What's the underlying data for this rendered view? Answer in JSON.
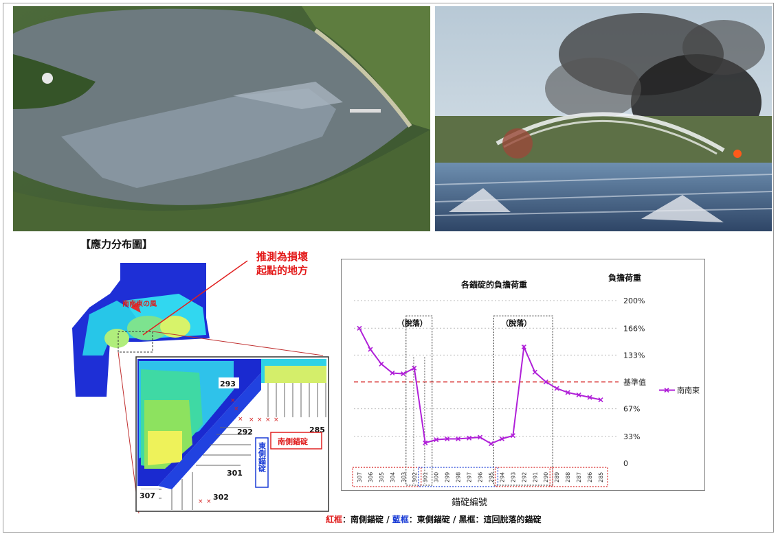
{
  "stress_map": {
    "title": "【應力分布圖】",
    "annotation_line1": "推測為損壞",
    "annotation_line2": "起點的地方",
    "wind_label": "南南東の風",
    "anchor_labels": {
      "a293": "293",
      "a292": "292",
      "a285": "285",
      "a301": "301",
      "a302": "302",
      "a307": "307"
    },
    "south_anchor_label": "南側錨碇",
    "east_anchor_label": "東側錨碇"
  },
  "chart_data": {
    "type": "line",
    "title": "各錨碇的負擔荷重",
    "ylabel": "負擔荷重",
    "xlabel": "錨碇編號",
    "y_ticks": [
      "200%",
      "166%",
      "133%",
      "基準值",
      "67%",
      "33%",
      "0"
    ],
    "ylim": [
      0,
      200
    ],
    "reference_value": 100,
    "x_ticks": [
      "307",
      "306",
      "305",
      "304",
      "303",
      "302",
      "301",
      "300",
      "299",
      "298",
      "297",
      "296",
      "295",
      "294",
      "293",
      "292",
      "291",
      "290",
      "289",
      "288",
      "287",
      "286",
      "285"
    ],
    "detached_label": "（脫落）",
    "series": [
      {
        "name": "南南東",
        "color": "#b020d8",
        "values": [
          166,
          140,
          122,
          111,
          110,
          117,
          25,
          29,
          30,
          30,
          31,
          32,
          24,
          30,
          34,
          143,
          112,
          100,
          92,
          87,
          84,
          81,
          78
        ]
      }
    ]
  },
  "legend": {
    "red_key": "紅框",
    "red_text": "：南側錨碇 / ",
    "blue_key": "藍框",
    "blue_text": "：東側錨碇 / 黑框：這回脫落的錨碇"
  }
}
